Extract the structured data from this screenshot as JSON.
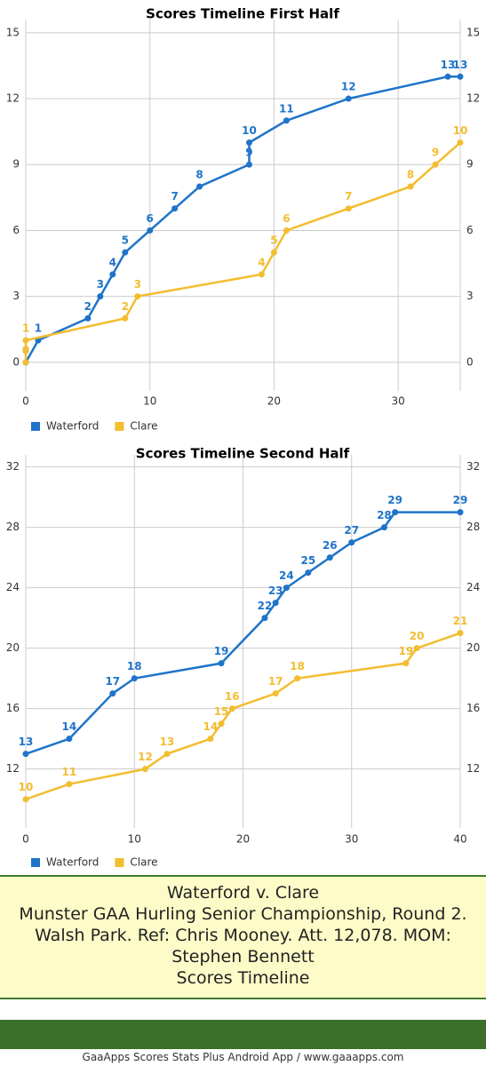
{
  "chart_data": [
    {
      "type": "line",
      "title": "Scores Timeline First Half",
      "xlim": [
        0,
        35
      ],
      "xticks": [
        0,
        10,
        20,
        30
      ],
      "ylim": [
        -1.3,
        15.6
      ],
      "yticks": [
        0,
        3,
        6,
        9,
        12,
        15
      ],
      "grid": true,
      "legend": "bottom-left",
      "series": [
        {
          "name": "Waterford",
          "color": "#1f74c9",
          "x": [
            0,
            1,
            5,
            6,
            7,
            8,
            10,
            12,
            14,
            18,
            18,
            21,
            26,
            34,
            35
          ],
          "values": [
            0,
            1,
            2,
            3,
            4,
            5,
            6,
            7,
            8,
            9,
            10,
            11,
            12,
            13,
            13
          ]
        },
        {
          "name": "Clare",
          "color": "#f2bd2f",
          "x": [
            0,
            0,
            8,
            9,
            19,
            20,
            21,
            26,
            31,
            33,
            35
          ],
          "values": [
            0,
            1,
            2,
            3,
            4,
            5,
            6,
            7,
            8,
            9,
            10
          ]
        }
      ]
    },
    {
      "type": "line",
      "title": "Scores Timeline Second Half",
      "xlim": [
        0,
        40
      ],
      "xticks": [
        0,
        10,
        20,
        30,
        40
      ],
      "ylim": [
        8.1,
        32.8
      ],
      "yticks": [
        12,
        16,
        20,
        24,
        28,
        32
      ],
      "grid": true,
      "legend": "bottom-left",
      "series": [
        {
          "name": "Waterford",
          "color": "#1f74c9",
          "x": [
            0,
            4,
            8,
            10,
            18,
            22,
            23,
            24,
            26,
            28,
            30,
            33,
            34,
            40
          ],
          "values": [
            13,
            14,
            17,
            18,
            19,
            22,
            23,
            24,
            25,
            26,
            27,
            28,
            29,
            29
          ]
        },
        {
          "name": "Clare",
          "color": "#f2bd2f",
          "x": [
            0,
            4,
            11,
            13,
            17,
            18,
            19,
            23,
            25,
            35,
            36,
            40
          ],
          "values": [
            10,
            11,
            12,
            13,
            14,
            15,
            16,
            17,
            18,
            19,
            20,
            21
          ]
        }
      ]
    }
  ],
  "footer": {
    "lines": [
      "Waterford v. Clare",
      "Munster GAA Hurling Senior Championship, Round 2. Walsh Park. Ref: Chris Mooney. Att. 12,078. MOM: Stephen Bennett",
      "Scores Timeline"
    ],
    "credit": "GaaApps Scores Stats Plus Android App / www.gaaapps.com"
  }
}
